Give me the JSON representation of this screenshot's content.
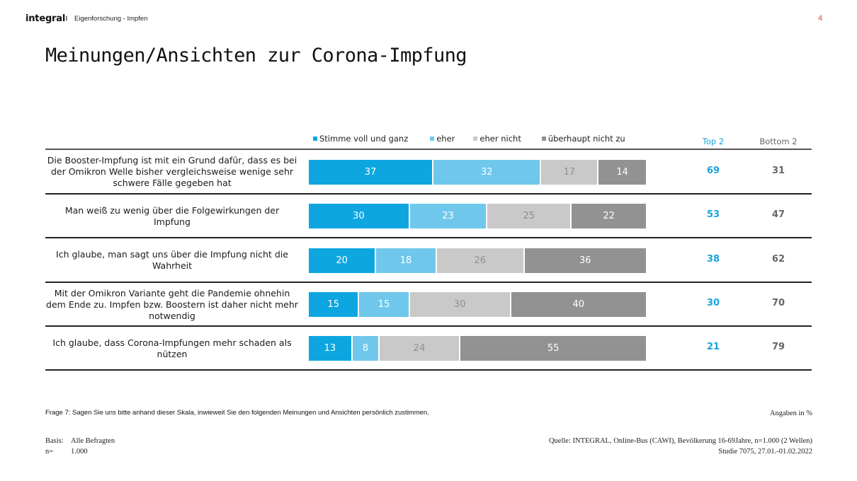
{
  "header": {
    "logo": "integral",
    "breadcrumb": "Eigenforschung - Impfen",
    "page_number": "4"
  },
  "title": "Meinungen/Ansichten zur Corona-Impfung",
  "colors": {
    "stimme_voll": "#0ea6e0",
    "eher": "#6fc8eb",
    "eher_nicht": "#c9c9c9",
    "ueberhaupt_nicht": "#929292",
    "top2_text": "#1aa3dd",
    "bottom2_text": "#666666",
    "page_number": "#e8433e"
  },
  "columns": {
    "top2": "Top 2",
    "bottom2": "Bottom 2"
  },
  "chart_data": {
    "type": "bar",
    "orientation": "horizontal",
    "stacked": true,
    "title": "Meinungen/Ansichten zur Corona-Impfung",
    "xlabel": "",
    "ylabel": "",
    "xlim": [
      0,
      100
    ],
    "unit": "%",
    "legend": [
      "Stimme voll und ganz",
      "eher",
      "eher nicht",
      "überhaupt nicht zu"
    ],
    "legend_position": "top",
    "categories": [
      "Die Booster-Impfung ist mit ein Grund dafür, dass es bei der Omikron Welle bisher vergleichsweise wenige sehr schwere Fälle gegeben hat",
      "Man weiß zu wenig über die Folgewirkungen der Impfung",
      "Ich glaube, man sagt uns über die Impfung nicht die Wahrheit",
      "Mit der Omikron Variante geht die Pandemie ohnehin dem Ende zu. Impfen bzw. Boostern ist daher nicht mehr notwendig",
      "Ich glaube, dass Corona-Impfungen mehr schaden als nützen"
    ],
    "series": [
      {
        "name": "Stimme voll und ganz",
        "values": [
          37,
          30,
          20,
          15,
          13
        ]
      },
      {
        "name": "eher",
        "values": [
          32,
          23,
          18,
          15,
          8
        ]
      },
      {
        "name": "eher nicht",
        "values": [
          17,
          25,
          26,
          30,
          24
        ]
      },
      {
        "name": "überhaupt nicht zu",
        "values": [
          14,
          22,
          36,
          40,
          55
        ]
      }
    ],
    "top2": [
      69,
      53,
      38,
      30,
      21
    ],
    "bottom2": [
      31,
      47,
      62,
      70,
      79
    ]
  },
  "footer": {
    "question": "Frage 7: Sagen Sie uns bitte anhand dieser Skala, inwieweit Sie den folgenden Meinungen und Ansichten persönlich zustimmen.",
    "unit_note": "Angaben in %",
    "basis_label": "Basis:",
    "basis_value": "Alle Befragten",
    "n_label": "n=",
    "n_value": "1.000",
    "source_line1": "Quelle: INTEGRAL, Online-Bus (CAWI),  Bevölkerung 16-69Jahre, n=1.000 (2 Wellen)",
    "source_line2": "Studie 7075, 27.01.-01.02.2022"
  }
}
